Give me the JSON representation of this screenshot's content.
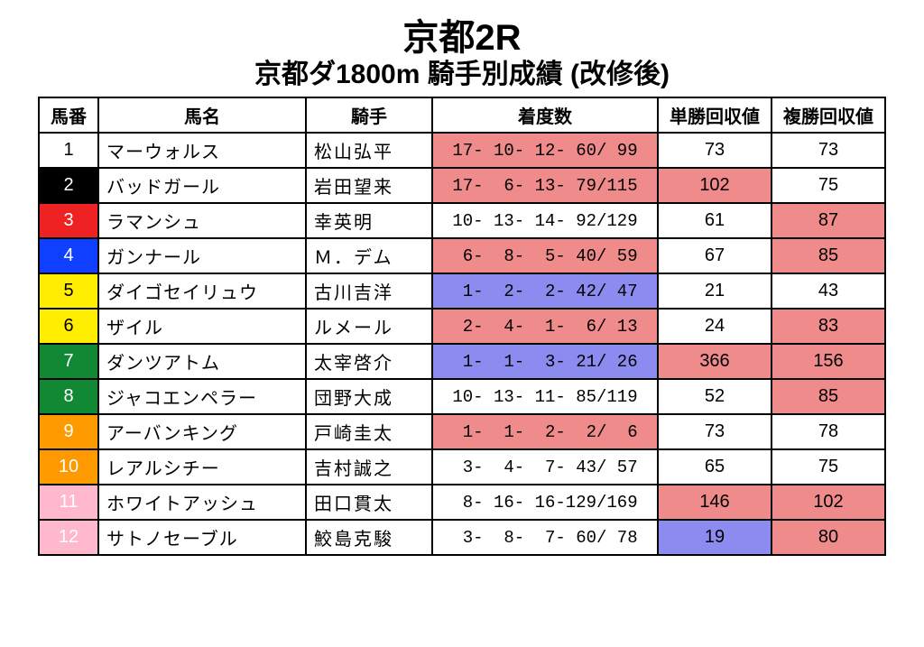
{
  "title": "京都2R",
  "subtitle": "京都ダ1800m 騎手別成績 (改修後)",
  "colors": {
    "red_hl": "#f08b8b",
    "blue_hl": "#8b8bf0",
    "white": "#ffffff",
    "black": "#000000",
    "num_black": "#000000",
    "num_red": "#ee2222",
    "num_blue": "#1040ff",
    "num_yellow": "#ffee00",
    "num_green": "#118833",
    "num_orange": "#ff9900",
    "num_pink": "#ffb8cc"
  },
  "headers": {
    "num": "馬番",
    "name": "馬名",
    "jockey": "騎手",
    "record": "着度数",
    "win": "単勝回収値",
    "place": "複勝回収値"
  },
  "rows": [
    {
      "num": "1",
      "num_bg": "#ffffff",
      "num_fg": "#000000",
      "name": "マーウォルス",
      "jockey": "松山弘平",
      "record": "17- 10- 12- 60/ 99",
      "record_bg": "#f08b8b",
      "win": "73",
      "win_bg": "#ffffff",
      "place": "73",
      "place_bg": "#ffffff"
    },
    {
      "num": "2",
      "num_bg": "#000000",
      "num_fg": "#ffffff",
      "name": "バッドガール",
      "jockey": "岩田望来",
      "record": "17-  6- 13- 79/115",
      "record_bg": "#f08b8b",
      "win": "102",
      "win_bg": "#f08b8b",
      "place": "75",
      "place_bg": "#ffffff"
    },
    {
      "num": "3",
      "num_bg": "#ee2222",
      "num_fg": "#ffffff",
      "name": "ラマンシュ",
      "jockey": "幸英明",
      "record": "10- 13- 14- 92/129",
      "record_bg": "#ffffff",
      "win": "61",
      "win_bg": "#ffffff",
      "place": "87",
      "place_bg": "#f08b8b"
    },
    {
      "num": "4",
      "num_bg": "#1040ff",
      "num_fg": "#ffffff",
      "name": "ガンナール",
      "jockey": "Ｍ．デム",
      "record": " 6-  8-  5- 40/ 59",
      "record_bg": "#f08b8b",
      "win": "67",
      "win_bg": "#ffffff",
      "place": "85",
      "place_bg": "#f08b8b"
    },
    {
      "num": "5",
      "num_bg": "#ffee00",
      "num_fg": "#000000",
      "name": "ダイゴセイリュウ",
      "jockey": "古川吉洋",
      "record": " 1-  2-  2- 42/ 47",
      "record_bg": "#8b8bf0",
      "win": "21",
      "win_bg": "#ffffff",
      "place": "43",
      "place_bg": "#ffffff"
    },
    {
      "num": "6",
      "num_bg": "#ffee00",
      "num_fg": "#000000",
      "name": "ザイル",
      "jockey": "ルメール",
      "record": " 2-  4-  1-  6/ 13",
      "record_bg": "#f08b8b",
      "win": "24",
      "win_bg": "#ffffff",
      "place": "83",
      "place_bg": "#f08b8b"
    },
    {
      "num": "7",
      "num_bg": "#118833",
      "num_fg": "#ffffff",
      "name": "ダンツアトム",
      "jockey": "太宰啓介",
      "record": " 1-  1-  3- 21/ 26",
      "record_bg": "#8b8bf0",
      "win": "366",
      "win_bg": "#f08b8b",
      "place": "156",
      "place_bg": "#f08b8b"
    },
    {
      "num": "8",
      "num_bg": "#118833",
      "num_fg": "#ffffff",
      "name": "ジャコエンペラー",
      "jockey": "団野大成",
      "record": "10- 13- 11- 85/119",
      "record_bg": "#ffffff",
      "win": "52",
      "win_bg": "#ffffff",
      "place": "85",
      "place_bg": "#f08b8b"
    },
    {
      "num": "9",
      "num_bg": "#ff9900",
      "num_fg": "#ffffff",
      "name": "アーバンキング",
      "jockey": "戸崎圭太",
      "record": " 1-  1-  2-  2/  6",
      "record_bg": "#f08b8b",
      "win": "73",
      "win_bg": "#ffffff",
      "place": "78",
      "place_bg": "#ffffff"
    },
    {
      "num": "10",
      "num_bg": "#ff9900",
      "num_fg": "#ffffff",
      "name": "レアルシチー",
      "jockey": "吉村誠之",
      "record": " 3-  4-  7- 43/ 57",
      "record_bg": "#ffffff",
      "win": "65",
      "win_bg": "#ffffff",
      "place": "75",
      "place_bg": "#ffffff"
    },
    {
      "num": "11",
      "num_bg": "#ffb8cc",
      "num_fg": "#ffffff",
      "name": "ホワイトアッシュ",
      "jockey": "田口貫太",
      "record": " 8- 16- 16-129/169",
      "record_bg": "#ffffff",
      "win": "146",
      "win_bg": "#f08b8b",
      "place": "102",
      "place_bg": "#f08b8b"
    },
    {
      "num": "12",
      "num_bg": "#ffb8cc",
      "num_fg": "#ffffff",
      "name": "サトノセーブル",
      "jockey": "鮫島克駿",
      "record": " 3-  8-  7- 60/ 78",
      "record_bg": "#ffffff",
      "win": "19",
      "win_bg": "#8b8bf0",
      "place": "80",
      "place_bg": "#f08b8b"
    }
  ]
}
